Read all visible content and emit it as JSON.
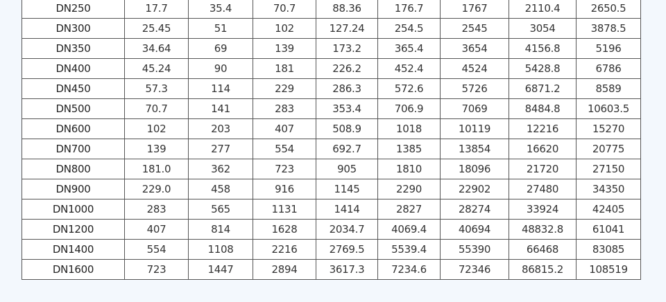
{
  "table": {
    "rows": [
      [
        "DN250",
        "17.7",
        "35.4",
        "70.7",
        "88.36",
        "176.7",
        "1767",
        "2110.4",
        "2650.5"
      ],
      [
        "DN300",
        "25.45",
        "51",
        "102",
        "127.24",
        "254.5",
        "2545",
        "3054",
        "3878.5"
      ],
      [
        "DN350",
        "34.64",
        "69",
        "139",
        "173.2",
        "365.4",
        "3654",
        "4156.8",
        "5196"
      ],
      [
        "DN400",
        "45.24",
        "90",
        "181",
        "226.2",
        "452.4",
        "4524",
        "5428.8",
        "6786"
      ],
      [
        "DN450",
        "57.3",
        "114",
        "229",
        "286.3",
        "572.6",
        "5726",
        "6871.2",
        "8589"
      ],
      [
        "DN500",
        "70.7",
        "141",
        "283",
        "353.4",
        "706.9",
        "7069",
        "8484.8",
        "10603.5"
      ],
      [
        "DN600",
        "102",
        "203",
        "407",
        "508.9",
        "1018",
        "10119",
        "12216",
        "15270"
      ],
      [
        "DN700",
        "139",
        "277",
        "554",
        "692.7",
        "1385",
        "13854",
        "16620",
        "20775"
      ],
      [
        "DN800",
        "181.0",
        "362",
        "723",
        "905",
        "1810",
        "18096",
        "21720",
        "27150"
      ],
      [
        "DN900",
        "229.0",
        "458",
        "916",
        "1145",
        "2290",
        "22902",
        "27480",
        "34350"
      ],
      [
        "DN1000",
        "283",
        "565",
        "1131",
        "1414",
        "2827",
        "28274",
        "33924",
        "42405"
      ],
      [
        "DN1200",
        "407",
        "814",
        "1628",
        "2034.7",
        "4069.4",
        "40694",
        "48832.8",
        "61041"
      ],
      [
        "DN1400",
        "554",
        "1108",
        "2216",
        "2769.5",
        "5539.4",
        "55390",
        "66468",
        "83085"
      ],
      [
        "DN1600",
        "723",
        "1447",
        "2894",
        "3617.3",
        "7234.6",
        "72346",
        "86815.2",
        "108519"
      ]
    ]
  }
}
